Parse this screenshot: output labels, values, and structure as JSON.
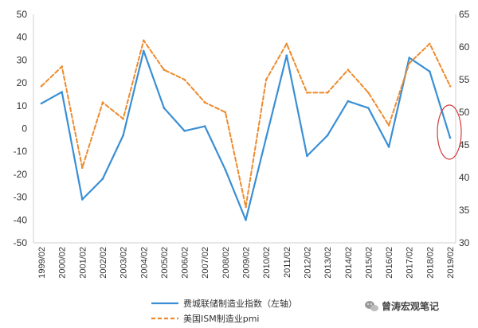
{
  "chart_data": {
    "type": "line",
    "x": [
      "1999/02",
      "2000/02",
      "2001/02",
      "2002/02",
      "2003/02",
      "2004/02",
      "2005/02",
      "2006/02",
      "2007/02",
      "2008/02",
      "2009/02",
      "2010/02",
      "2011/02",
      "2012/02",
      "2013/02",
      "2014/02",
      "2015/02",
      "2016/02",
      "2017/02",
      "2018/02",
      "2019/02"
    ],
    "y_left": {
      "ylim": [
        -50,
        50
      ],
      "ticks": [
        "50",
        "40",
        "30",
        "20",
        "10",
        "0",
        "-10",
        "-20",
        "-30",
        "-40",
        "-50"
      ]
    },
    "y_right": {
      "ylim": [
        30,
        65
      ],
      "ticks": [
        "65",
        "60",
        "55",
        "50",
        "45",
        "40",
        "35",
        "30"
      ]
    },
    "grid": false,
    "legend_position": "bottom",
    "series": [
      {
        "name": "费城联储制造业指数（左轴）",
        "axis": "left",
        "color": "#3a8fd4",
        "style": "solid",
        "values": [
          11,
          16,
          -31,
          -22,
          -3,
          34,
          9,
          -1,
          1,
          -18,
          -40,
          -4,
          32,
          -12,
          -3,
          12,
          9,
          -8,
          31,
          25,
          -4
        ]
      },
      {
        "name": "美国ISM制造业pmi",
        "axis": "right",
        "color": "#ee8a2c",
        "style": "dashed",
        "values": [
          54,
          57,
          41.5,
          51.5,
          49,
          61,
          56.5,
          55,
          51.5,
          50,
          35.5,
          55,
          60.5,
          53,
          53,
          56.5,
          53,
          48,
          57.5,
          60.5,
          54
        ]
      }
    ]
  },
  "watermark": {
    "text": "曾涛宏观笔记",
    "icon": "wechat-icon"
  },
  "annotation": {
    "shape": "ellipse",
    "color": "#d23b3b"
  }
}
